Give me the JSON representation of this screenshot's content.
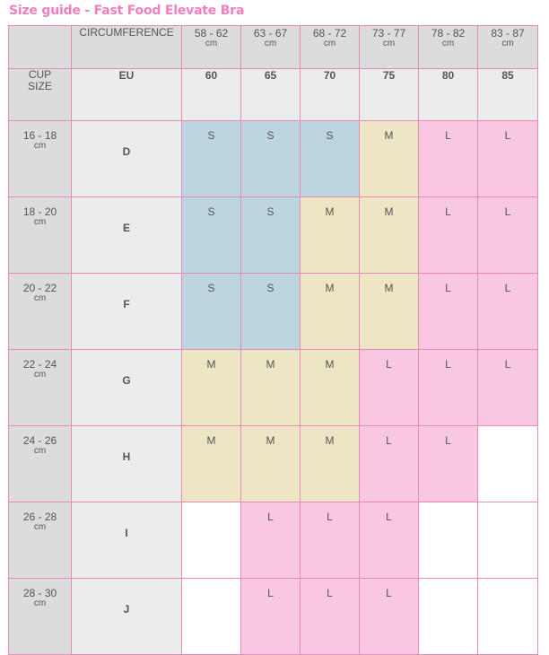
{
  "title": "Size guide - Fast Food Elevate Bra",
  "header": {
    "circumference_label": "CIRCUMFERENCE",
    "ranges": [
      {
        "range": "58 - 62",
        "unit": "cm"
      },
      {
        "range": "63 - 67",
        "unit": "cm"
      },
      {
        "range": "68 - 72",
        "unit": "cm"
      },
      {
        "range": "73 - 77",
        "unit": "cm"
      },
      {
        "range": "78 - 82",
        "unit": "cm"
      },
      {
        "range": "83 - 87",
        "unit": "cm"
      }
    ]
  },
  "eu_row": {
    "cup_size_line1": "CUP",
    "cup_size_line2": "SIZE",
    "eu_label": "EU",
    "bands": [
      "60",
      "65",
      "70",
      "75",
      "80",
      "85"
    ]
  },
  "rows": [
    {
      "range": "16 - 18",
      "unit": "cm",
      "cup": "D",
      "sizes": [
        "S",
        "S",
        "S",
        "M",
        "L",
        "L"
      ]
    },
    {
      "range": "18 - 20",
      "unit": "cm",
      "cup": "E",
      "sizes": [
        "S",
        "S",
        "M",
        "M",
        "L",
        "L"
      ]
    },
    {
      "range": "20 - 22",
      "unit": "cm",
      "cup": "F",
      "sizes": [
        "S",
        "S",
        "M",
        "M",
        "L",
        "L"
      ]
    },
    {
      "range": "22 - 24",
      "unit": "cm",
      "cup": "G",
      "sizes": [
        "M",
        "M",
        "M",
        "L",
        "L",
        "L"
      ]
    },
    {
      "range": "24 - 26",
      "unit": "cm",
      "cup": "H",
      "sizes": [
        "M",
        "M",
        "M",
        "L",
        "L",
        ""
      ]
    },
    {
      "range": "26 - 28",
      "unit": "cm",
      "cup": "I",
      "sizes": [
        "",
        "L",
        "L",
        "L",
        "",
        ""
      ]
    },
    {
      "range": "28 - 30",
      "unit": "cm",
      "cup": "J",
      "sizes": [
        "",
        "L",
        "L",
        "L",
        "",
        ""
      ]
    }
  ],
  "colors": {
    "title": "#f07ec0",
    "border": "#e58ab9",
    "S": "#bcd5df",
    "M": "#ece6c4",
    "L": "#f7c8df",
    "header_bg": "#dcdcdc",
    "light_bg": "#ececec"
  }
}
